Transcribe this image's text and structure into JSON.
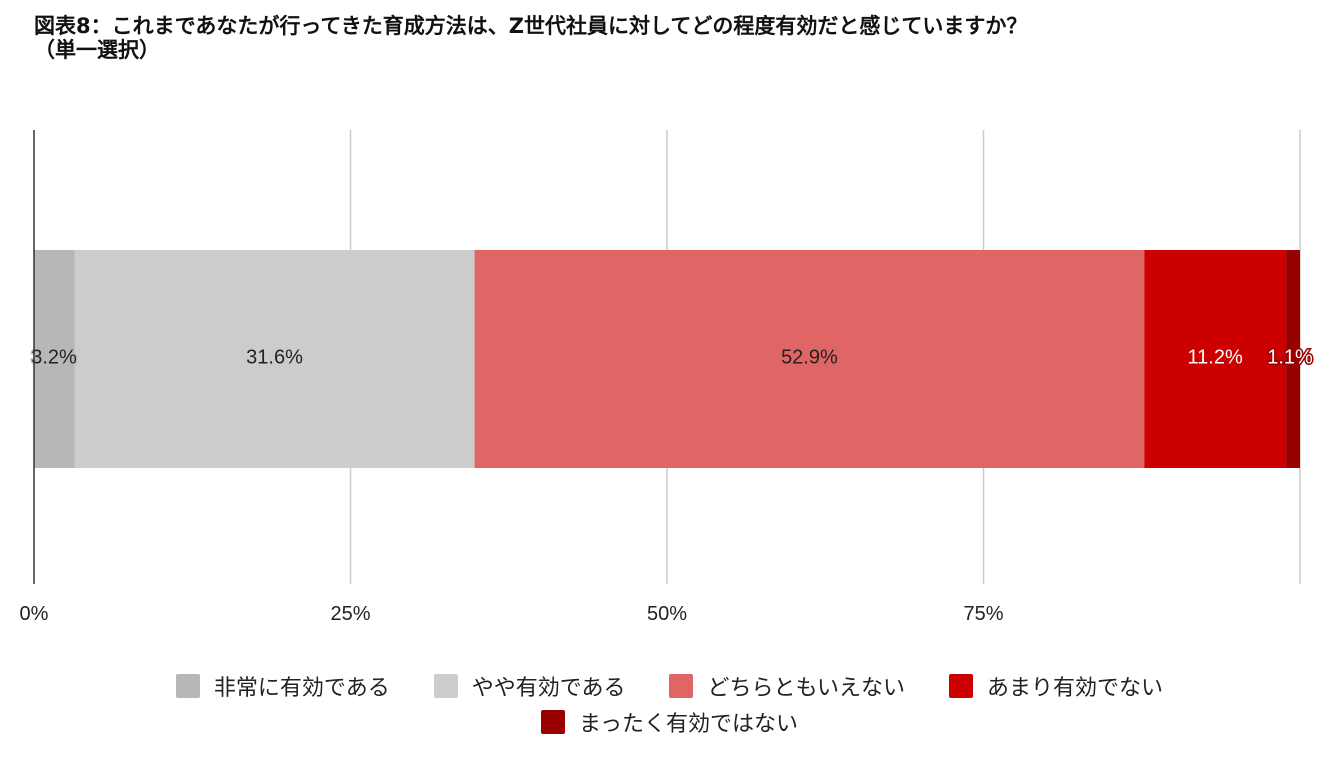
{
  "title": {
    "line1": "図表8：これまであなたが行ってきた育成方法は、Z世代社員に対してどの程度有効だと感じていますか？",
    "line2": "（単一選択）"
  },
  "chart_data": {
    "type": "bar",
    "orientation": "horizontal",
    "stacked": true,
    "series": [
      {
        "name": "非常に有効である",
        "value": 3.2,
        "label": "3.2%",
        "color": "#b7b7b7",
        "label_color": "#222222"
      },
      {
        "name": "やや有効である",
        "value": 31.6,
        "label": "31.6%",
        "color": "#cccccc",
        "label_color": "#222222"
      },
      {
        "name": "どちらともいえない",
        "value": 52.9,
        "label": "52.9%",
        "color": "#e06666",
        "label_color": "#222222"
      },
      {
        "name": "あまり有効でない",
        "value": 11.2,
        "label": "11.2%",
        "color": "#cc0000",
        "label_color": "#ffffff"
      },
      {
        "name": "まったく有効ではない",
        "value": 1.1,
        "label": "1.1%",
        "color": "#990000",
        "label_color": "#ffffff"
      }
    ],
    "x_ticks": [
      "0%",
      "25%",
      "50%",
      "75%"
    ],
    "xlim": [
      0,
      100
    ],
    "grid": true,
    "legend_position": "bottom"
  }
}
